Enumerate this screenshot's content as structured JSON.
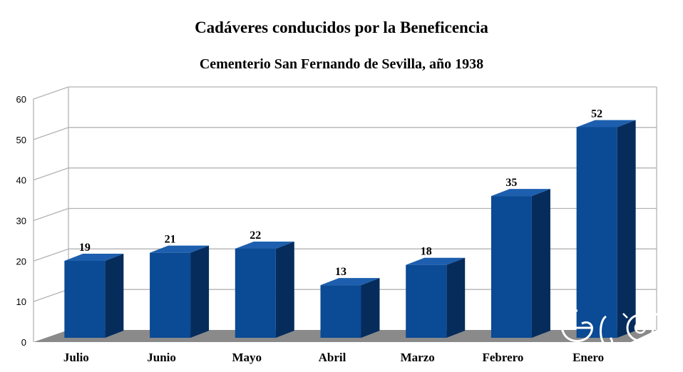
{
  "chart_data": {
    "type": "bar",
    "title": "Cadáveres conducidos por la Beneficencia",
    "subtitle": "Cementerio San Fernando de Sevilla, año 1938",
    "categories": [
      "Julio",
      "Junio",
      "Mayo",
      "Abril",
      "Marzo",
      "Febrero",
      "Enero"
    ],
    "values": [
      19,
      21,
      22,
      13,
      18,
      35,
      52
    ],
    "yticks": [
      "0",
      "10",
      "20",
      "30",
      "40",
      "50",
      "60"
    ],
    "ylim": [
      0,
      60
    ],
    "grid": true,
    "legend": "none",
    "three_d": true,
    "colors": {
      "bar_front": "#0b4a94",
      "bar_side": "#062c5c",
      "bar_top": "#1d5fae",
      "floor": "#8a8a8a",
      "grid": "#b3b3b3",
      "wall": "#ffffff"
    },
    "watermark_icon": "ego-logo-icon"
  }
}
